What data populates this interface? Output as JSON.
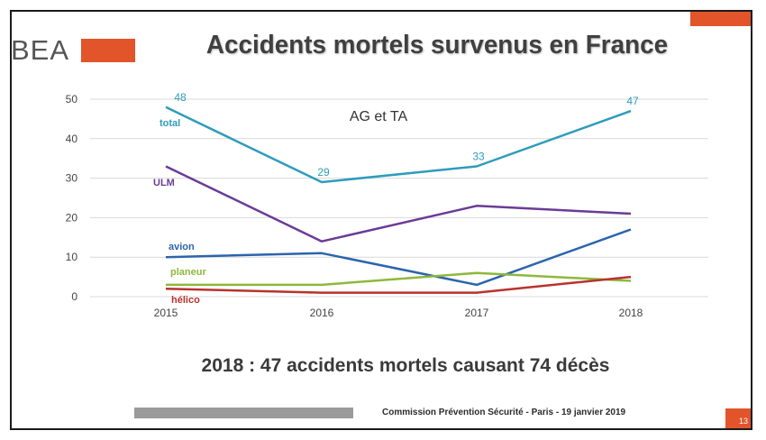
{
  "slide": {
    "title": "Accidents mortels survenus en France",
    "logo_text": "BEA",
    "summary": "2018 : 47 accidents mortels causant 74 décès",
    "footer": "Commission Prévention Sécurité - Paris - 19 janvier 2019",
    "page_number": "13",
    "accent_color": "#e2542a"
  },
  "chart_data": {
    "type": "line",
    "annotation": "AG et TA",
    "categories": [
      "2015",
      "2016",
      "2017",
      "2018"
    ],
    "ylim": [
      0,
      50
    ],
    "yticks": [
      "0",
      "10",
      "20",
      "30",
      "40",
      "50"
    ],
    "grid": true,
    "series": [
      {
        "name": "total",
        "values": [
          48,
          29,
          33,
          47
        ],
        "color": "#2e9cbb",
        "show_labels": true
      },
      {
        "name": "ULM",
        "values": [
          33,
          14,
          23,
          21
        ],
        "color": "#6a3b97",
        "show_labels": false
      },
      {
        "name": "avion",
        "values": [
          10,
          11,
          3,
          17
        ],
        "color": "#2b64ad",
        "show_labels": false
      },
      {
        "name": "planeur",
        "values": [
          3,
          3,
          6,
          4
        ],
        "color": "#8db83c",
        "show_labels": false
      },
      {
        "name": "hélico",
        "values": [
          2,
          1,
          1,
          5
        ],
        "color": "#b8332c",
        "show_labels": false
      }
    ]
  }
}
